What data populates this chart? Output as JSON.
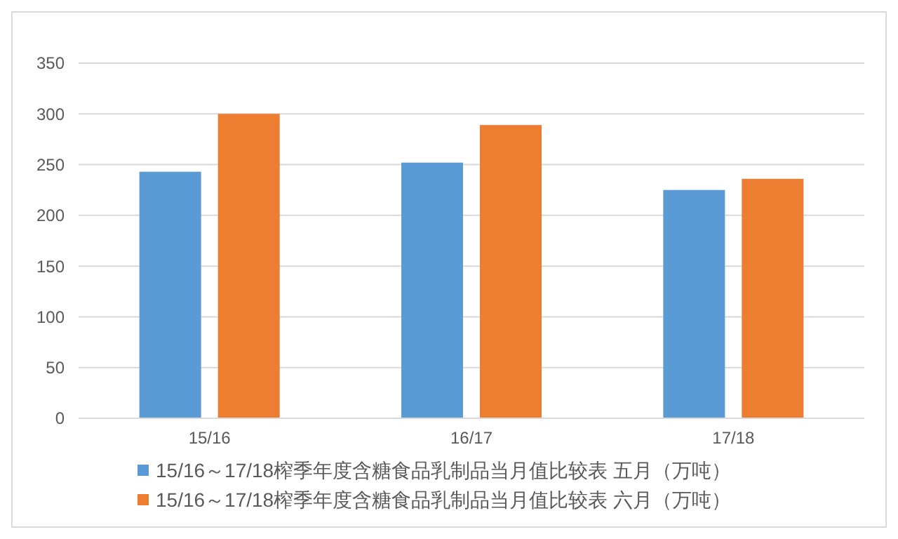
{
  "chart_data": {
    "type": "bar",
    "categories": [
      "15/16",
      "16/17",
      "17/18"
    ],
    "series": [
      {
        "name": "15/16～17/18榨季年度含糖食品乳制品当月值比较表 五月（万吨）",
        "color": "#5b9bd5",
        "values": [
          243,
          252,
          225
        ]
      },
      {
        "name": "15/16～17/18榨季年度含糖食品乳制品当月值比较表 六月（万吨）",
        "color": "#ed7d31",
        "values": [
          300,
          289,
          236
        ]
      }
    ],
    "ylim": [
      0,
      350
    ],
    "yticks": [
      0,
      50,
      100,
      150,
      200,
      250,
      300,
      350
    ],
    "grid": "y",
    "legend": "bottom"
  }
}
